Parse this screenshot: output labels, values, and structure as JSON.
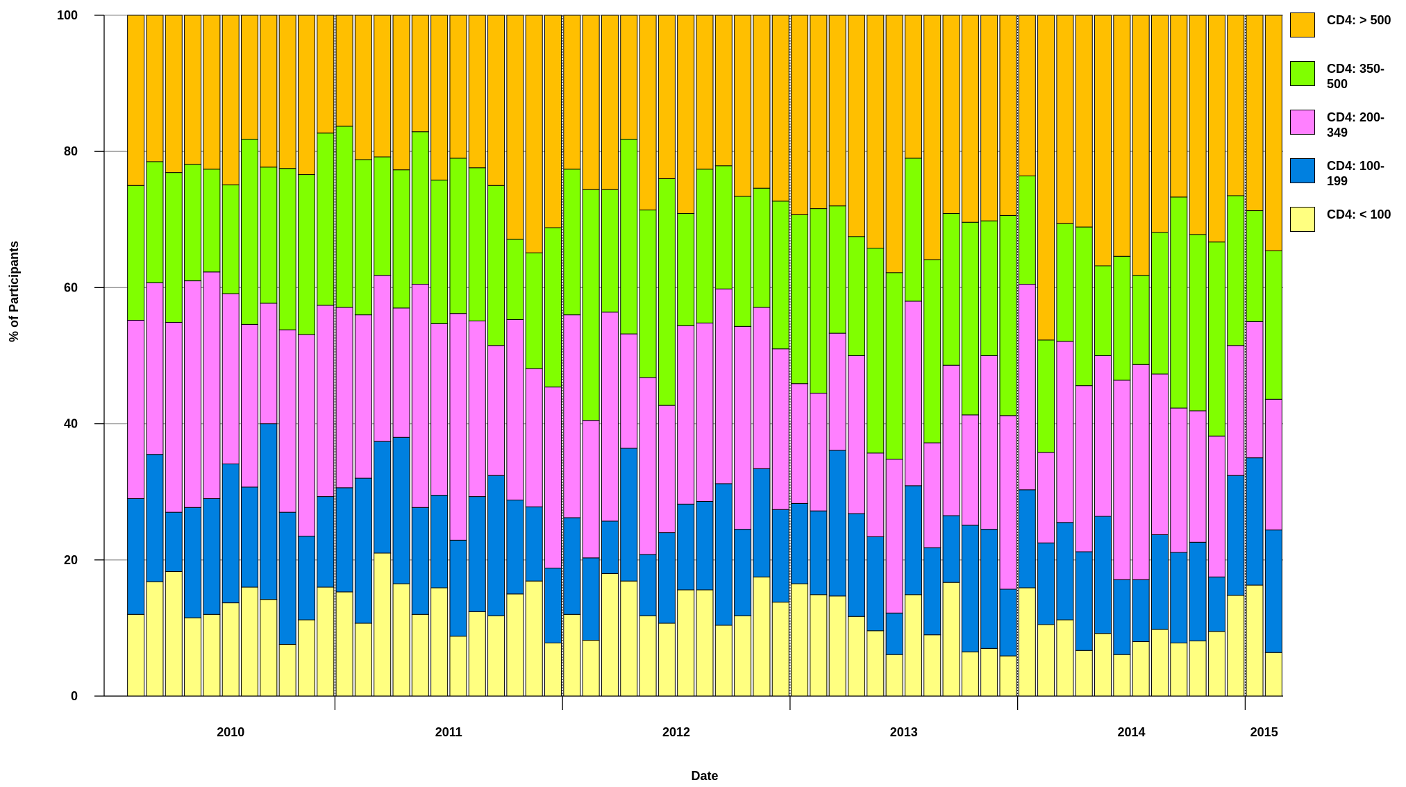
{
  "chart_data": {
    "type": "stacked_bar",
    "ylabel": "% of Participants",
    "xlabel": "Date",
    "categories": [
      "2010",
      "2010",
      "2010",
      "2010",
      "2010",
      "2010",
      "2010",
      "2010",
      "2010",
      "2010",
      "2010",
      "2011",
      "2011",
      "2011",
      "2011",
      "2011",
      "2011",
      "2011",
      "2011",
      "2011",
      "2011",
      "2011",
      "2011",
      "2012",
      "2012",
      "2012",
      "2012",
      "2012",
      "2012",
      "2012",
      "2012",
      "2012",
      "2012",
      "2012",
      "2012",
      "2013",
      "2013",
      "2013",
      "2013",
      "2013",
      "2013",
      "2013",
      "2013",
      "2013",
      "2013",
      "2013",
      "2013",
      "2014",
      "2014",
      "2014",
      "2014",
      "2014",
      "2014",
      "2014",
      "2014",
      "2014",
      "2014",
      "2014",
      "2014",
      "2015",
      "2015"
    ],
    "series": [
      {
        "name": "CD4: < 100",
        "color": "#ffff80",
        "values": [
          12,
          16.8,
          18.3,
          11.5,
          12,
          13.7,
          16,
          14.2,
          7.6,
          11.2,
          16,
          15.3,
          10.7,
          21,
          16.5,
          12,
          15.9,
          8.8,
          12.4,
          11.8,
          15,
          16.9,
          7.8,
          12,
          8.2,
          18,
          16.9,
          11.8,
          10.7,
          15.6,
          15.6,
          10.4,
          11.8,
          17.5,
          13.8,
          16.5,
          14.9,
          14.7,
          11.7,
          9.6,
          6.1,
          14.9,
          9,
          16.7,
          6.5,
          7,
          5.9,
          15.9,
          10.5,
          11.2,
          6.7,
          9.2,
          6.1,
          8,
          9.8,
          7.8,
          8.1,
          9.5,
          14.8,
          16.3,
          6.4
        ]
      },
      {
        "name": "CD4: 100-199",
        "color": "#0080e0",
        "values": [
          17,
          18.7,
          8.7,
          16.2,
          17,
          20.4,
          14.7,
          25.8,
          19.4,
          12.3,
          13.3,
          15.3,
          21.3,
          16.4,
          21.5,
          15.7,
          13.6,
          14.1,
          16.9,
          20.6,
          13.8,
          10.9,
          11,
          14.2,
          12.1,
          7.7,
          19.5,
          9,
          13.3,
          12.6,
          13,
          20.8,
          12.7,
          15.9,
          13.6,
          11.8,
          12.3,
          21.4,
          15.1,
          13.8,
          6.1,
          16,
          12.8,
          9.8,
          18.6,
          17.5,
          9.8,
          14.4,
          12,
          14.3,
          14.5,
          17.2,
          11,
          9.1,
          13.9,
          13.3,
          14.5,
          8,
          17.6,
          18.7,
          18
        ]
      },
      {
        "name": "CD4: 200-349",
        "color": "#ff80ff",
        "values": [
          26.2,
          25.2,
          27.9,
          33.3,
          33.3,
          25,
          23.9,
          17.7,
          26.8,
          29.6,
          28.1,
          26.5,
          24,
          24.4,
          19,
          32.8,
          25.2,
          33.3,
          25.8,
          19.1,
          26.5,
          20.3,
          26.6,
          29.8,
          20.2,
          30.7,
          16.8,
          26,
          18.7,
          26.2,
          26.2,
          28.6,
          29.8,
          23.7,
          23.6,
          17.6,
          17.3,
          17.2,
          23.2,
          12.3,
          22.6,
          27.1,
          15.4,
          22.1,
          16.2,
          25.5,
          25.5,
          30.2,
          13.3,
          26.6,
          24.4,
          23.6,
          29.3,
          31.6,
          23.6,
          21.2,
          19.3,
          20.7,
          19.1,
          20,
          19.2
        ]
      },
      {
        "name": "CD4: 350-500",
        "color": "#80ff00",
        "values": [
          19.8,
          17.8,
          22,
          17.1,
          15.1,
          16,
          27.2,
          20,
          23.7,
          23.5,
          25.3,
          26.6,
          22.8,
          17.4,
          20.3,
          22.4,
          21.1,
          22.8,
          22.5,
          23.5,
          11.8,
          17,
          23.4,
          21.4,
          33.9,
          18,
          28.6,
          24.6,
          33.3,
          16.5,
          22.6,
          18.1,
          19.1,
          17.5,
          21.7,
          24.8,
          27.1,
          18.7,
          17.5,
          30.1,
          27.4,
          21,
          26.9,
          22.3,
          28.3,
          19.8,
          29.4,
          15.9,
          16.5,
          17.3,
          23.3,
          13.2,
          18.2,
          13.1,
          20.8,
          31,
          25.9,
          28.5,
          22,
          16.3,
          21.8
        ]
      },
      {
        "name": "CD4: > 500",
        "color": "#ffbf00",
        "values": [
          25,
          21.5,
          23.1,
          21.9,
          22.6,
          24.9,
          18.2,
          22.3,
          22.5,
          23.4,
          17.3,
          16.3,
          21.2,
          20.8,
          22.7,
          17.1,
          24.2,
          21,
          22.4,
          25,
          32.9,
          34.9,
          31.2,
          22.6,
          25.6,
          25.6,
          18.2,
          28.6,
          24,
          29.1,
          22.6,
          22.1,
          26.6,
          25.4,
          27.3,
          29.3,
          28.4,
          28,
          32.5,
          34.2,
          37.8,
          21,
          35.9,
          29.1,
          30.4,
          30.2,
          29.4,
          23.6,
          47.7,
          30.6,
          31.1,
          36.8,
          35.4,
          38.2,
          31.9,
          26.7,
          32.2,
          33.3,
          26.5,
          28.7,
          34.6
        ]
      }
    ],
    "ylim": [
      0,
      100
    ],
    "yticks": [
      0,
      20,
      40,
      60,
      80,
      100
    ],
    "grid": true,
    "legend": "right"
  }
}
